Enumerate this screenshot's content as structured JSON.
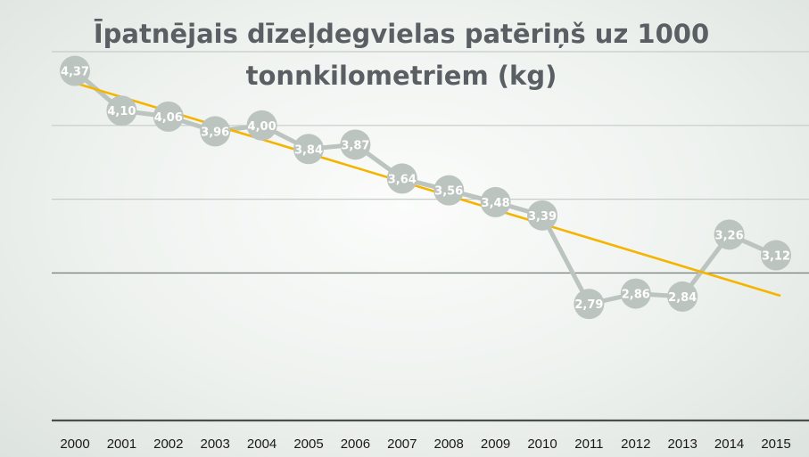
{
  "chart_data": {
    "type": "line",
    "title_lines": [
      "Īpatnējais dīzeļdegvielas patēriņš uz 1000",
      "tonnkilometriem (kg)"
    ],
    "categories": [
      "2000",
      "2001",
      "2002",
      "2003",
      "2004",
      "2005",
      "2006",
      "2007",
      "2008",
      "2009",
      "2010",
      "2011",
      "2012",
      "2013",
      "2014",
      "2015"
    ],
    "series": [
      {
        "values": [
          4.37,
          4.1,
          4.06,
          3.96,
          4.0,
          3.84,
          3.87,
          3.64,
          3.56,
          3.48,
          3.39,
          2.79,
          2.86,
          2.84,
          3.26,
          3.12
        ],
        "labels": [
          "4,37",
          "4,10",
          "4,06",
          "3,96",
          "4,00",
          "3,84",
          "3,87",
          "3,64",
          "3,56",
          "3,48",
          "3,39",
          "2,79",
          "2,86",
          "2,84",
          "3,26",
          "3,12"
        ],
        "line_color": "#bcc4bf",
        "marker_color": "#bcc4bf"
      }
    ],
    "trendline": {
      "type": "linear",
      "color": "#f5b400"
    },
    "ylim": [
      2,
      4.5
    ],
    "grid": true,
    "legend": "none"
  }
}
